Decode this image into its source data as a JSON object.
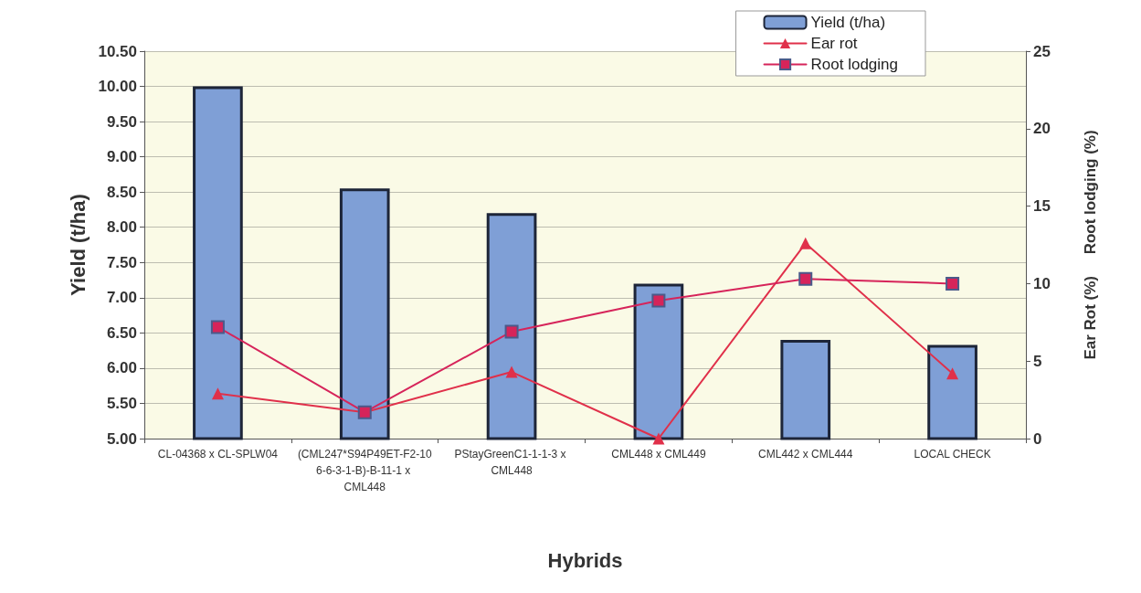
{
  "chart_data": {
    "type": "bar",
    "xlabel": "Hybrids",
    "ylabel": "Yield (t/ha)",
    "y2label": "Ear Rot (%)     Root lodging (%)",
    "categories": [
      "CL-04368 x CL-SPLW04",
      "(CML247*S94P49ET-F2-106-6-3-1-B)-B-11-1 x CML448",
      "PStayGreenC1-1-1-3 x CML448",
      "CML448 x CML449",
      "CML442 x CML444",
      "LOCAL CHECK"
    ],
    "series": [
      {
        "name": "Yield (t/ha)",
        "color": "#7f9fd6",
        "values": [
          10.0,
          8.55,
          8.2,
          7.2,
          6.4,
          6.33
        ]
      },
      {
        "name": "Ear rot",
        "type": "line",
        "axis": "y2",
        "marker": "triangle",
        "color": "#e0304a",
        "values": [
          2.9,
          1.7,
          4.3,
          0,
          12.6,
          4.2
        ]
      },
      {
        "name": "Root lodging",
        "type": "line",
        "axis": "y2",
        "marker": "square",
        "color": "#d6245a",
        "values": [
          7.2,
          1.7,
          6.9,
          8.9,
          10.3,
          10.0
        ]
      }
    ],
    "ylim": [
      5,
      10.5
    ],
    "yticks": [
      {
        "value": 5,
        "label": "5.00"
      },
      {
        "value": 5.5,
        "label": "5.50"
      },
      {
        "value": 6,
        "label": "6.00"
      },
      {
        "value": 6.5,
        "label": "6.50"
      },
      {
        "value": 7,
        "label": "7.00"
      },
      {
        "value": 7.5,
        "label": "7.50"
      },
      {
        "value": 8,
        "label": "8.00"
      },
      {
        "value": 8.5,
        "label": "8.50"
      },
      {
        "value": 9,
        "label": "9.00"
      },
      {
        "value": 9.5,
        "label": "9.50"
      },
      {
        "value": 10,
        "label": "10.00"
      },
      {
        "value": 10.5,
        "label": "10.50"
      }
    ],
    "y2lim": [
      0,
      25
    ],
    "y2ticks": [
      0,
      5,
      10,
      15,
      20,
      25
    ],
    "grid": "y",
    "legend": "top right",
    "line_style": "solid"
  }
}
